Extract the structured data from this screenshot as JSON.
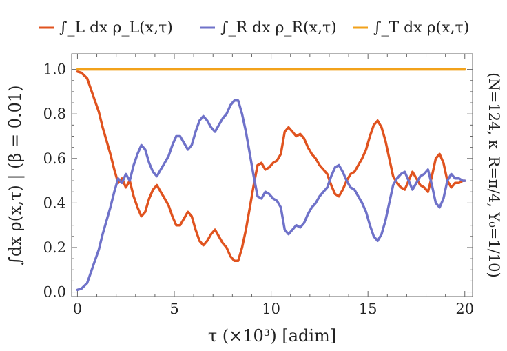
{
  "chart_data": {
    "type": "line",
    "title": "",
    "xlabel": "τ (×10³) [adim]",
    "ylabel": "∫dx ρ(x,τ) | (β = 0.01)",
    "side_label": "(N=124, κ_R=π/4, Υ₀=1/10)",
    "xlim": [
      -0.3,
      20.4
    ],
    "ylim": [
      -0.02,
      1.07
    ],
    "xticks": [
      0,
      5,
      10,
      15,
      20
    ],
    "xtick_labels": [
      "0",
      "5",
      "10",
      "15",
      "20"
    ],
    "yticks": [
      0.0,
      0.2,
      0.4,
      0.6,
      0.8,
      1.0
    ],
    "ytick_labels": [
      "0.0",
      "0.2",
      "0.4",
      "0.6",
      "0.8",
      "1.0"
    ],
    "grid": false,
    "legend_position": "top",
    "series": [
      {
        "name": "∫_L dx ρ_L(x,τ)",
        "color": "#e0531f",
        "points": [
          [
            0,
            0.99
          ],
          [
            0.2,
            0.985
          ],
          [
            0.5,
            0.96
          ],
          [
            0.7,
            0.91
          ],
          [
            0.9,
            0.86
          ],
          [
            1.1,
            0.81
          ],
          [
            1.3,
            0.74
          ],
          [
            1.5,
            0.68
          ],
          [
            1.7,
            0.62
          ],
          [
            1.9,
            0.55
          ],
          [
            2.1,
            0.49
          ],
          [
            2.3,
            0.51
          ],
          [
            2.5,
            0.47
          ],
          [
            2.7,
            0.5
          ],
          [
            2.9,
            0.43
          ],
          [
            3.1,
            0.38
          ],
          [
            3.3,
            0.34
          ],
          [
            3.5,
            0.36
          ],
          [
            3.7,
            0.42
          ],
          [
            3.9,
            0.46
          ],
          [
            4.1,
            0.48
          ],
          [
            4.3,
            0.45
          ],
          [
            4.5,
            0.42
          ],
          [
            4.7,
            0.39
          ],
          [
            4.9,
            0.34
          ],
          [
            5.1,
            0.3
          ],
          [
            5.3,
            0.3
          ],
          [
            5.5,
            0.33
          ],
          [
            5.7,
            0.36
          ],
          [
            5.9,
            0.34
          ],
          [
            6.1,
            0.28
          ],
          [
            6.3,
            0.23
          ],
          [
            6.5,
            0.21
          ],
          [
            6.7,
            0.23
          ],
          [
            6.9,
            0.26
          ],
          [
            7.1,
            0.28
          ],
          [
            7.3,
            0.25
          ],
          [
            7.5,
            0.22
          ],
          [
            7.7,
            0.2
          ],
          [
            7.9,
            0.16
          ],
          [
            8.1,
            0.14
          ],
          [
            8.3,
            0.14
          ],
          [
            8.5,
            0.2
          ],
          [
            8.7,
            0.28
          ],
          [
            8.9,
            0.38
          ],
          [
            9.1,
            0.48
          ],
          [
            9.3,
            0.57
          ],
          [
            9.5,
            0.58
          ],
          [
            9.7,
            0.55
          ],
          [
            9.9,
            0.56
          ],
          [
            10.1,
            0.58
          ],
          [
            10.3,
            0.59
          ],
          [
            10.5,
            0.62
          ],
          [
            10.7,
            0.72
          ],
          [
            10.9,
            0.74
          ],
          [
            11.1,
            0.72
          ],
          [
            11.3,
            0.7
          ],
          [
            11.5,
            0.71
          ],
          [
            11.7,
            0.69
          ],
          [
            11.9,
            0.65
          ],
          [
            12.1,
            0.62
          ],
          [
            12.3,
            0.6
          ],
          [
            12.5,
            0.57
          ],
          [
            12.7,
            0.55
          ],
          [
            12.9,
            0.53
          ],
          [
            13.1,
            0.48
          ],
          [
            13.3,
            0.44
          ],
          [
            13.5,
            0.43
          ],
          [
            13.7,
            0.46
          ],
          [
            13.9,
            0.5
          ],
          [
            14.1,
            0.53
          ],
          [
            14.3,
            0.54
          ],
          [
            14.5,
            0.57
          ],
          [
            14.7,
            0.6
          ],
          [
            14.9,
            0.64
          ],
          [
            15.1,
            0.7
          ],
          [
            15.3,
            0.75
          ],
          [
            15.5,
            0.77
          ],
          [
            15.7,
            0.74
          ],
          [
            15.9,
            0.68
          ],
          [
            16.1,
            0.6
          ],
          [
            16.3,
            0.52
          ],
          [
            16.5,
            0.49
          ],
          [
            16.7,
            0.47
          ],
          [
            16.9,
            0.46
          ],
          [
            17.1,
            0.5
          ],
          [
            17.3,
            0.54
          ],
          [
            17.5,
            0.51
          ],
          [
            17.7,
            0.48
          ],
          [
            17.9,
            0.47
          ],
          [
            18.1,
            0.45
          ],
          [
            18.3,
            0.52
          ],
          [
            18.5,
            0.6
          ],
          [
            18.7,
            0.62
          ],
          [
            18.9,
            0.58
          ],
          [
            19.1,
            0.5
          ],
          [
            19.3,
            0.47
          ],
          [
            19.5,
            0.49
          ],
          [
            19.7,
            0.49
          ],
          [
            19.9,
            0.5
          ],
          [
            20,
            0.5
          ]
        ]
      },
      {
        "name": "∫_R dx ρ_R(x,τ)",
        "color": "#6f72c9",
        "points": [
          [
            0,
            0.01
          ],
          [
            0.2,
            0.015
          ],
          [
            0.5,
            0.04
          ],
          [
            0.7,
            0.09
          ],
          [
            0.9,
            0.14
          ],
          [
            1.1,
            0.19
          ],
          [
            1.3,
            0.26
          ],
          [
            1.5,
            0.32
          ],
          [
            1.7,
            0.38
          ],
          [
            1.9,
            0.45
          ],
          [
            2.1,
            0.51
          ],
          [
            2.3,
            0.49
          ],
          [
            2.5,
            0.53
          ],
          [
            2.7,
            0.5
          ],
          [
            2.9,
            0.57
          ],
          [
            3.1,
            0.62
          ],
          [
            3.3,
            0.66
          ],
          [
            3.5,
            0.64
          ],
          [
            3.7,
            0.58
          ],
          [
            3.9,
            0.54
          ],
          [
            4.1,
            0.52
          ],
          [
            4.3,
            0.55
          ],
          [
            4.5,
            0.58
          ],
          [
            4.7,
            0.61
          ],
          [
            4.9,
            0.66
          ],
          [
            5.1,
            0.7
          ],
          [
            5.3,
            0.7
          ],
          [
            5.5,
            0.67
          ],
          [
            5.7,
            0.64
          ],
          [
            5.9,
            0.66
          ],
          [
            6.1,
            0.72
          ],
          [
            6.3,
            0.77
          ],
          [
            6.5,
            0.79
          ],
          [
            6.7,
            0.77
          ],
          [
            6.9,
            0.74
          ],
          [
            7.1,
            0.72
          ],
          [
            7.3,
            0.75
          ],
          [
            7.5,
            0.78
          ],
          [
            7.7,
            0.8
          ],
          [
            7.9,
            0.84
          ],
          [
            8.1,
            0.86
          ],
          [
            8.3,
            0.86
          ],
          [
            8.5,
            0.8
          ],
          [
            8.7,
            0.72
          ],
          [
            8.9,
            0.62
          ],
          [
            9.1,
            0.52
          ],
          [
            9.3,
            0.43
          ],
          [
            9.5,
            0.42
          ],
          [
            9.7,
            0.45
          ],
          [
            9.9,
            0.44
          ],
          [
            10.1,
            0.42
          ],
          [
            10.3,
            0.41
          ],
          [
            10.5,
            0.38
          ],
          [
            10.7,
            0.28
          ],
          [
            10.9,
            0.26
          ],
          [
            11.1,
            0.28
          ],
          [
            11.3,
            0.3
          ],
          [
            11.5,
            0.29
          ],
          [
            11.7,
            0.31
          ],
          [
            11.9,
            0.35
          ],
          [
            12.1,
            0.38
          ],
          [
            12.3,
            0.4
          ],
          [
            12.5,
            0.43
          ],
          [
            12.7,
            0.45
          ],
          [
            12.9,
            0.47
          ],
          [
            13.1,
            0.52
          ],
          [
            13.3,
            0.56
          ],
          [
            13.5,
            0.57
          ],
          [
            13.7,
            0.54
          ],
          [
            13.9,
            0.5
          ],
          [
            14.1,
            0.47
          ],
          [
            14.3,
            0.46
          ],
          [
            14.5,
            0.43
          ],
          [
            14.7,
            0.4
          ],
          [
            14.9,
            0.36
          ],
          [
            15.1,
            0.3
          ],
          [
            15.3,
            0.25
          ],
          [
            15.5,
            0.23
          ],
          [
            15.7,
            0.26
          ],
          [
            15.9,
            0.32
          ],
          [
            16.1,
            0.4
          ],
          [
            16.3,
            0.48
          ],
          [
            16.5,
            0.51
          ],
          [
            16.7,
            0.53
          ],
          [
            16.9,
            0.54
          ],
          [
            17.1,
            0.5
          ],
          [
            17.3,
            0.46
          ],
          [
            17.5,
            0.49
          ],
          [
            17.7,
            0.52
          ],
          [
            17.9,
            0.53
          ],
          [
            18.1,
            0.55
          ],
          [
            18.3,
            0.48
          ],
          [
            18.5,
            0.4
          ],
          [
            18.7,
            0.38
          ],
          [
            18.9,
            0.42
          ],
          [
            19.1,
            0.5
          ],
          [
            19.3,
            0.53
          ],
          [
            19.5,
            0.51
          ],
          [
            19.7,
            0.51
          ],
          [
            19.9,
            0.5
          ],
          [
            20,
            0.5
          ]
        ]
      },
      {
        "name": "∫_T dx ρ(x,τ)",
        "color": "#f2a21b",
        "points": [
          [
            0,
            1.0
          ],
          [
            20,
            1.0
          ]
        ]
      }
    ]
  }
}
